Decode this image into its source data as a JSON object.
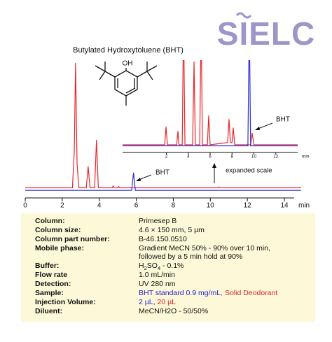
{
  "logo": "SIELC",
  "molecule_label": "OH",
  "chart_data": [
    {
      "type": "line",
      "title": "Butylated Hydroxytoluene (BHT)",
      "x_label": "min",
      "xlim": [
        0,
        14.9
      ],
      "xticks": [
        0,
        2,
        4,
        6,
        8,
        10,
        12,
        14
      ],
      "ylim": [
        -7,
        100
      ],
      "series": [
        {
          "color": "#e8262c",
          "x": [
            0,
            2.55,
            2.65,
            2.72,
            2.8,
            2.9,
            3.3,
            3.4,
            3.5,
            3.75,
            3.85,
            3.95,
            4.7,
            4.75,
            4.8,
            5.0,
            5.05,
            5.1,
            10.4,
            10.45,
            10.5,
            14.9
          ],
          "values": [
            1,
            1,
            30,
            100,
            20,
            1,
            1,
            18,
            1,
            1,
            39,
            1,
            1,
            2.5,
            1,
            1,
            2,
            1,
            1,
            1.6,
            1,
            1
          ]
        },
        {
          "color": "#2b2bd6",
          "x": [
            0,
            5.75,
            5.85,
            5.95,
            14.9
          ],
          "values": [
            -1,
            -1,
            13,
            -1,
            -1
          ]
        }
      ],
      "annotations": [
        {
          "text": "BHT"
        },
        {
          "text": "expanded scale"
        }
      ]
    },
    {
      "type": "line",
      "x_label": "min",
      "xlim": [
        -2,
        14
      ],
      "xticks": [
        2,
        4,
        6,
        8,
        10,
        12
      ],
      "ylim": [
        0,
        40
      ],
      "series": [
        {
          "color": "#e8262c",
          "x": [
            -2,
            1.85,
            1.97,
            2.1,
            2.95,
            3.06,
            3.15,
            3.45,
            3.57,
            3.7,
            4.4,
            4.53,
            4.65,
            5.05,
            5.17,
            5.3,
            5.75,
            5.87,
            6.0,
            7.6,
            7.73,
            7.85,
            8.0,
            8.11,
            8.25,
            9.7,
            9.84,
            10.0,
            14
          ],
          "values": [
            1,
            1,
            9.5,
            1,
            1,
            7.5,
            1,
            1,
            60,
            1,
            1,
            40,
            1,
            1,
            60,
            1,
            1,
            14.7,
            1,
            2,
            13,
            2,
            2,
            9,
            1,
            1,
            6.5,
            1,
            1
          ]
        },
        {
          "color": "#2b2bd6",
          "x": [
            -2,
            9.45,
            9.58,
            9.7,
            14
          ],
          "values": [
            0.5,
            0.5,
            60,
            0.5,
            0.5
          ]
        }
      ],
      "annotations": [
        {
          "text": "BHT"
        }
      ]
    }
  ],
  "table": {
    "rows": [
      {
        "label": "Column:",
        "value": [
          {
            "text": "Primesep B"
          }
        ]
      },
      {
        "label": "Column size:",
        "value": [
          {
            "text": "4.6 × 150 mm, 5 µm"
          }
        ]
      },
      {
        "label": "Column part number:",
        "value": [
          {
            "text": "B-46.150.0510"
          }
        ]
      },
      {
        "label": "Mobile phase:",
        "value": [
          {
            "text": "Gradient MeCN 50% - 90% over 10 min,"
          }
        ],
        "value_line2": "followed by a 5 min hold at 90%"
      },
      {
        "label": "Buffer:",
        "value": [
          {
            "text": "H"
          },
          {
            "text": "2",
            "sub": true
          },
          {
            "text": "SO"
          },
          {
            "text": "4",
            "sub": true
          },
          {
            "text": " - 0.1%"
          }
        ]
      },
      {
        "label": "Flow rate",
        "value": [
          {
            "text": "1.0 mL/min"
          }
        ]
      },
      {
        "label": "Detection:",
        "value": [
          {
            "text": "UV 280 nm"
          }
        ]
      },
      {
        "label": "Sample:",
        "value": [
          {
            "text": "BHT standard 0.9 mg/mL",
            "color": "#2222cc"
          },
          {
            "text": ", Solid Deodorant",
            "color": "#dd2222"
          }
        ]
      },
      {
        "label": "Injection Volume:",
        "value": [
          {
            "text": "2 µL,",
            "color": "#2222cc"
          },
          {
            "text": " 20 µL",
            "color": "#dd2222"
          }
        ]
      },
      {
        "label": "Diluent:",
        "value": [
          {
            "text": "MeCN/H2O - 50/50%"
          }
        ]
      }
    ]
  }
}
